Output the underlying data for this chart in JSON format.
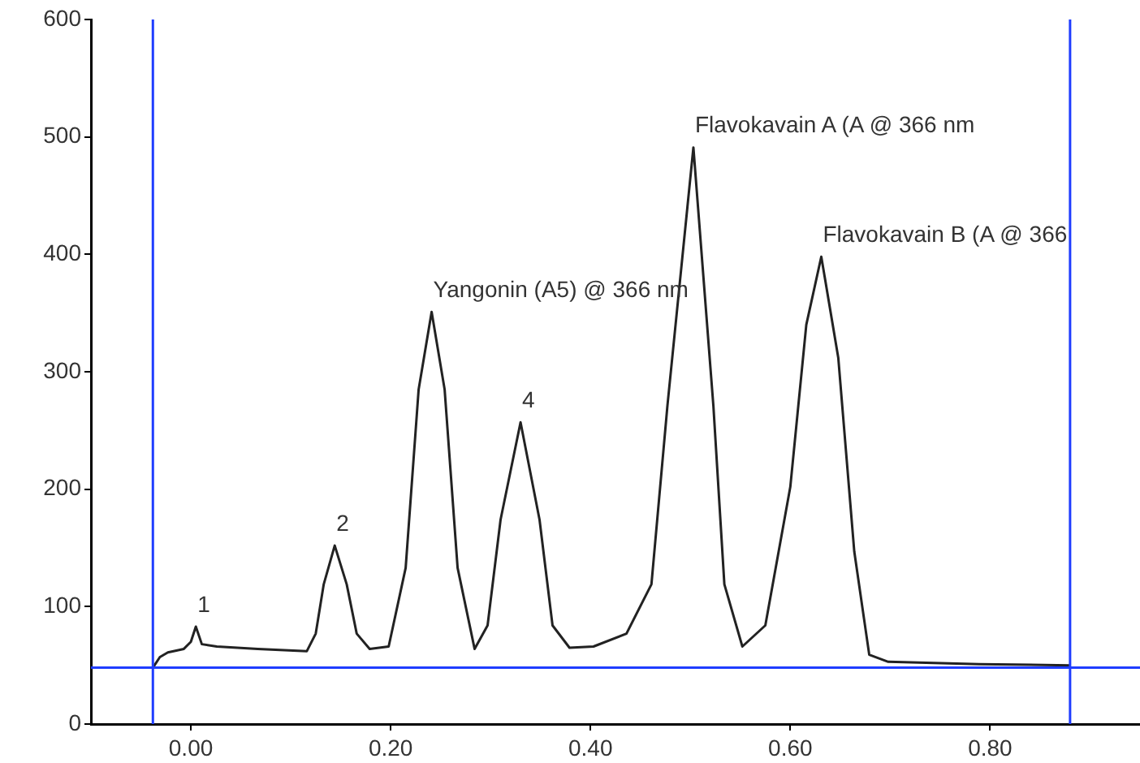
{
  "chart_data": {
    "type": "line",
    "x": [
      -0.038,
      -0.031,
      -0.023,
      -0.007,
      0.0,
      0.005,
      0.011,
      0.026,
      0.067,
      0.116,
      0.125,
      0.133,
      0.144,
      0.156,
      0.166,
      0.179,
      0.198,
      0.215,
      0.228,
      0.241,
      0.254,
      0.267,
      0.284,
      0.297,
      0.31,
      0.33,
      0.349,
      0.362,
      0.379,
      0.403,
      0.436,
      0.461,
      0.477,
      0.503,
      0.523,
      0.534,
      0.552,
      0.575,
      0.6,
      0.616,
      0.631,
      0.648,
      0.664,
      0.679,
      0.698,
      0.789,
      0.88
    ],
    "series": [
      {
        "color": "#222222",
        "values": [
          48,
          57,
          61,
          64,
          70,
          83,
          68,
          66,
          64,
          62,
          77,
          119,
          152,
          119,
          77,
          64,
          66,
          133,
          285,
          351,
          285,
          133,
          64,
          84,
          174,
          257,
          174,
          84,
          65,
          66,
          77,
          119,
          271,
          491,
          271,
          119,
          66,
          84,
          202,
          340,
          398,
          312,
          147,
          59,
          53,
          51,
          50
        ]
      }
    ],
    "xlim": [
      -0.1,
      0.95
    ],
    "xticks": [
      {
        "value": 0,
        "label": "0.00"
      },
      {
        "value": 0.2,
        "label": "0.20"
      },
      {
        "value": 0.4,
        "label": "0.40"
      },
      {
        "value": 0.6,
        "label": "0.60"
      },
      {
        "value": 0.8,
        "label": "0.80"
      }
    ],
    "ylim": [
      0,
      600
    ],
    "yticks": [
      0,
      100,
      200,
      300,
      400,
      500,
      600
    ],
    "grid": false,
    "legend": false,
    "marker": "none",
    "line_style": "solid",
    "ref_lines": [
      {
        "axis": "x",
        "value": -0.038,
        "color": "#1f3dff"
      },
      {
        "axis": "x",
        "value": 0.88,
        "color": "#1f3dff"
      },
      {
        "axis": "y",
        "value": 48,
        "color": "#1f3dff"
      }
    ],
    "annotations": [
      {
        "text": "1",
        "x": 0.005,
        "y": 83
      },
      {
        "text": "2",
        "x": 0.144,
        "y": 152
      },
      {
        "text": "Yangonin (A5) @ 366 nm",
        "x": 0.241,
        "y": 351
      },
      {
        "text": "4",
        "x": 0.33,
        "y": 257
      },
      {
        "text": "Flavokavain A (A @ 366 nm",
        "x": 0.503,
        "y": 491
      },
      {
        "text": "Flavokavain B (A @ 366",
        "x": 0.631,
        "y": 398
      }
    ]
  }
}
